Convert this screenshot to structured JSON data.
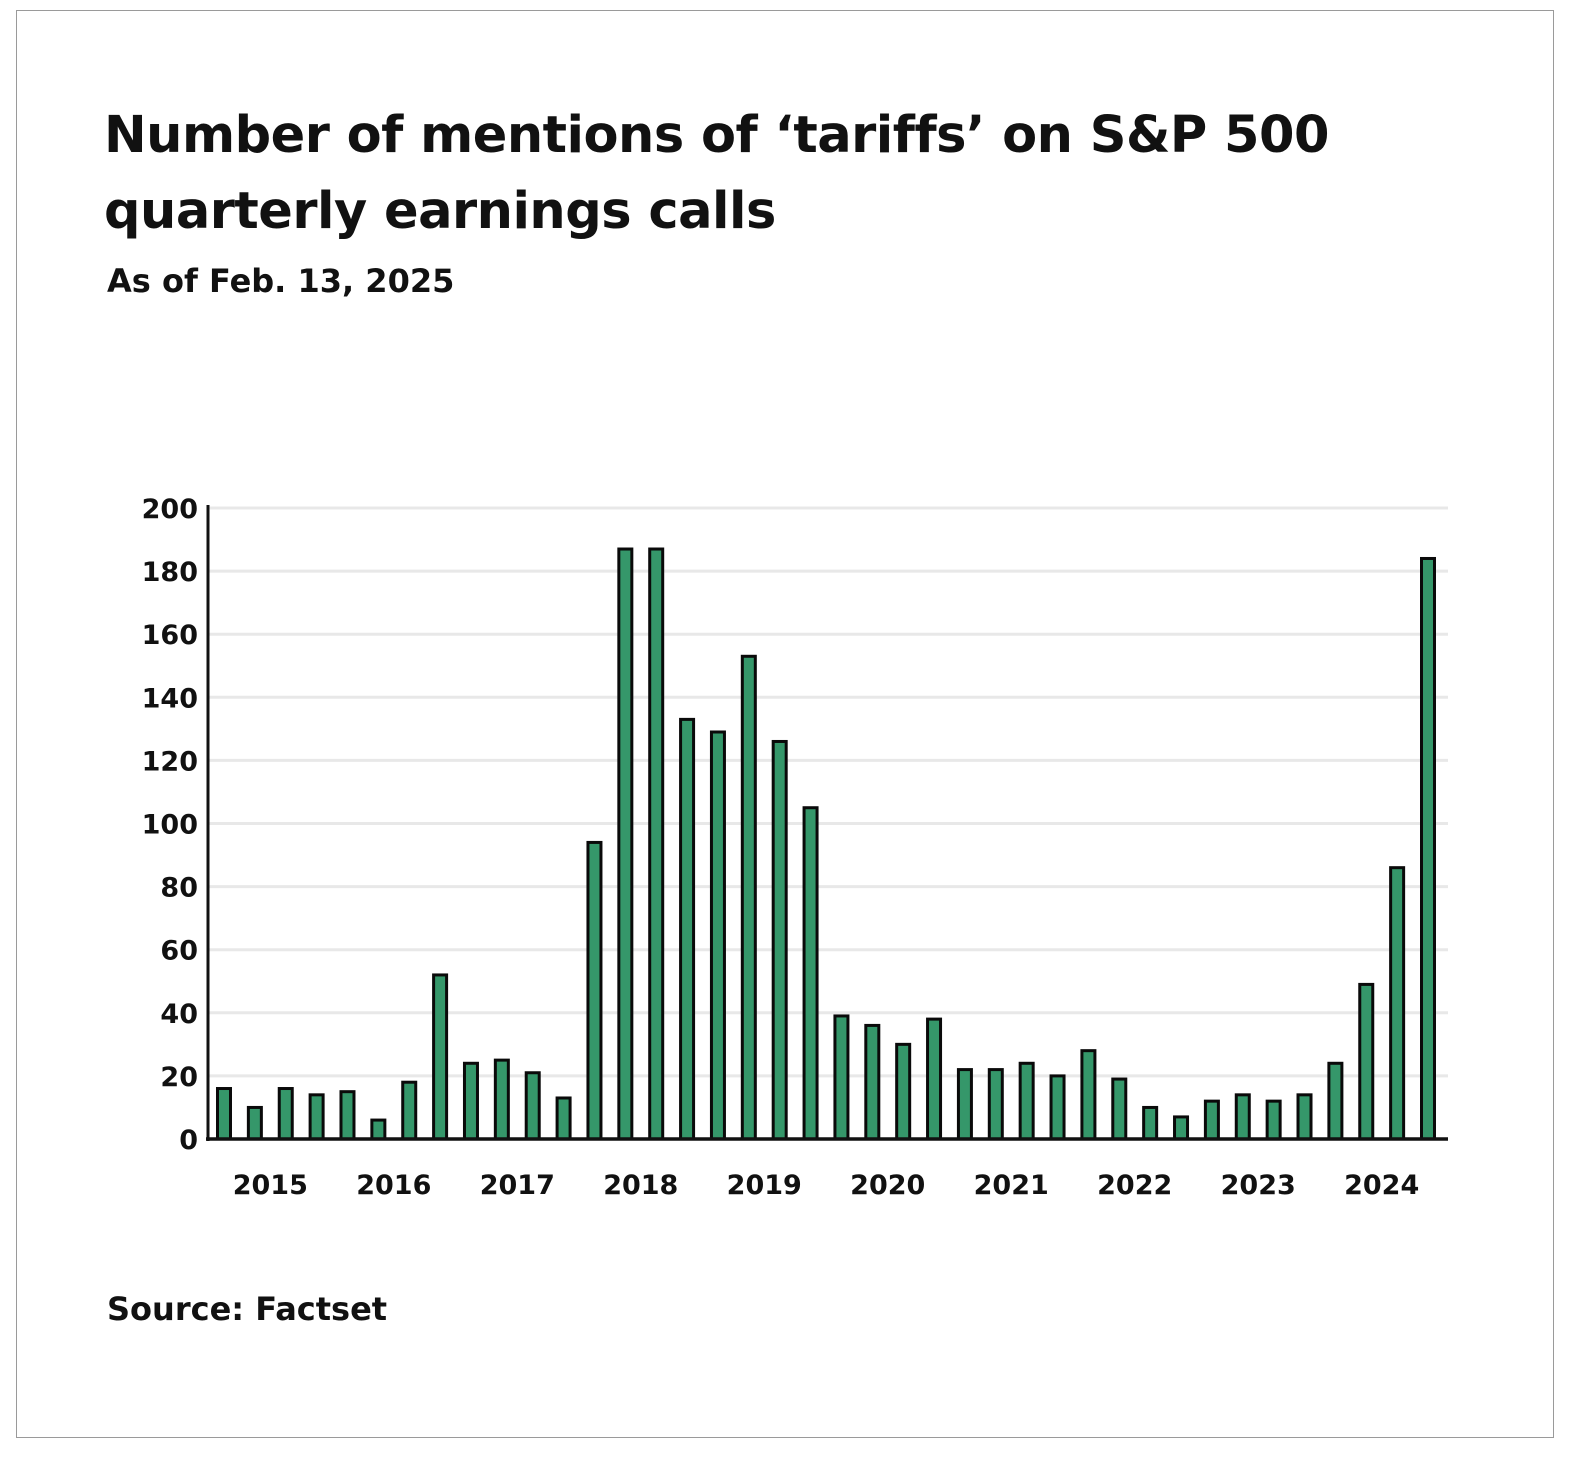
{
  "chart_data": {
    "type": "bar",
    "title": "Number of mentions of ‘tariffs’ on S&P 500 quarterly earnings calls",
    "subtitle": "As of Feb. 13, 2025",
    "source": "Source: Factset",
    "xlabel": "",
    "ylabel": "",
    "ylim": [
      0,
      200
    ],
    "yticks": [
      "0",
      "20",
      "40",
      "60",
      "80",
      "100",
      "120",
      "140",
      "160",
      "180",
      "200"
    ],
    "year_labels": [
      "2015",
      "2016",
      "2017",
      "2018",
      "2019",
      "2020",
      "2021",
      "2022",
      "2023",
      "2024"
    ],
    "grid": true,
    "bar_color": "#35976a",
    "values": [
      16,
      10,
      16,
      14,
      15,
      6,
      18,
      52,
      24,
      25,
      21,
      13,
      94,
      187,
      187,
      133,
      129,
      153,
      126,
      105,
      39,
      36,
      30,
      38,
      22,
      22,
      24,
      20,
      28,
      19,
      10,
      7,
      12,
      14,
      12,
      14,
      24,
      49,
      86,
      184
    ]
  }
}
